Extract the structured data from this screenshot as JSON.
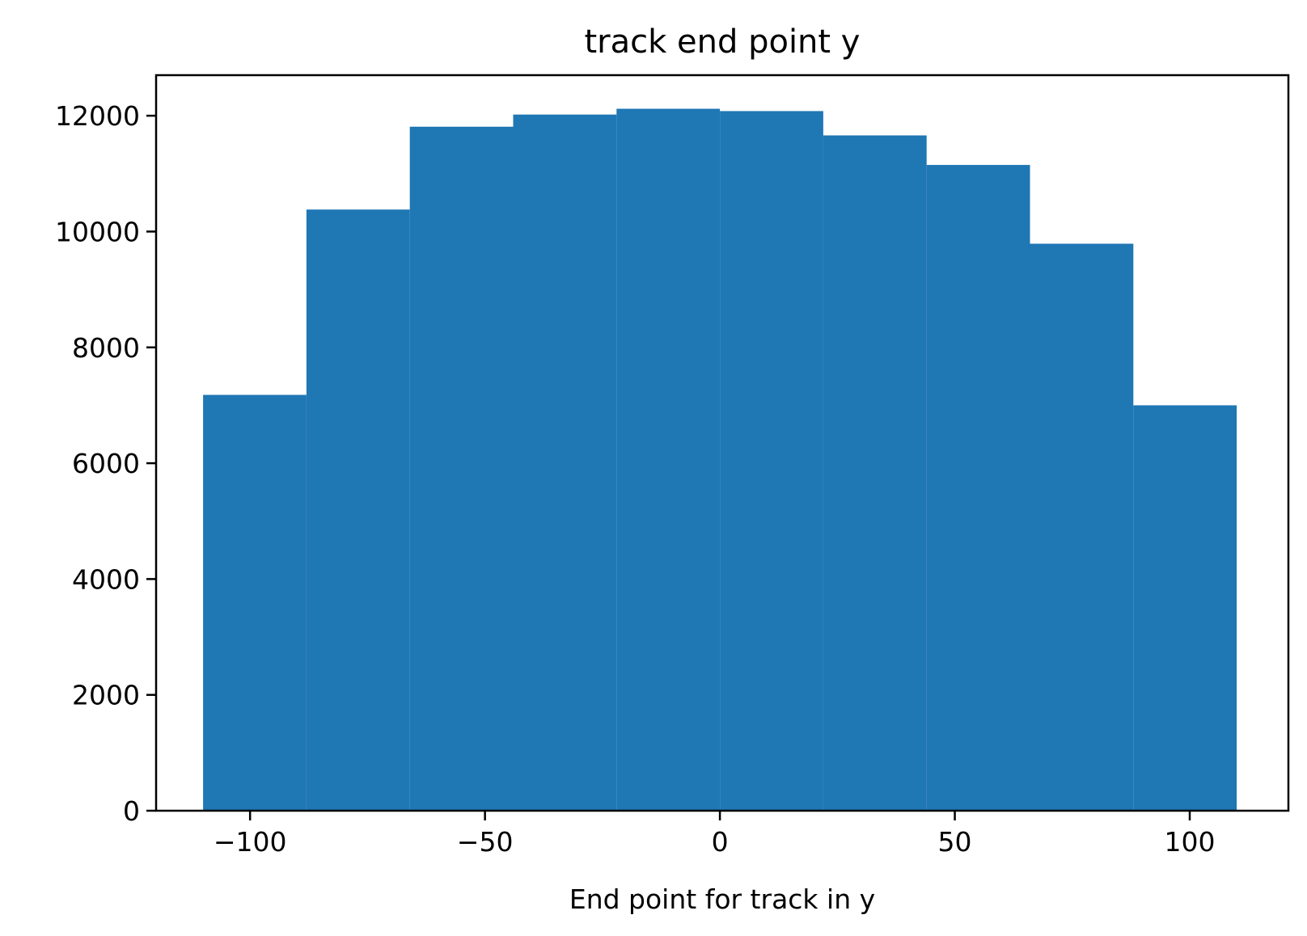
{
  "chart_data": {
    "type": "bar",
    "title": "track end point y",
    "xlabel": "End point for track in y",
    "ylabel": "",
    "xlim": [
      -120,
      121
    ],
    "ylim": [
      0,
      12700
    ],
    "xticks": [
      -100,
      -50,
      0,
      50,
      100
    ],
    "xtick_labels": [
      "−100",
      "−50",
      "0",
      "50",
      "100"
    ],
    "yticks": [
      0,
      2000,
      4000,
      6000,
      8000,
      10000,
      12000
    ],
    "ytick_labels": [
      "0",
      "2000",
      "4000",
      "6000",
      "8000",
      "10000",
      "12000"
    ],
    "bin_edges": [
      -110,
      -88,
      -66,
      -44,
      -22,
      0,
      22,
      44,
      66,
      88,
      110
    ],
    "values": [
      7180,
      10380,
      11810,
      12020,
      12120,
      12080,
      11660,
      11150,
      9790,
      7000
    ],
    "grid": false,
    "bar_color": "#1f77b4",
    "axis_color": "#000000"
  }
}
